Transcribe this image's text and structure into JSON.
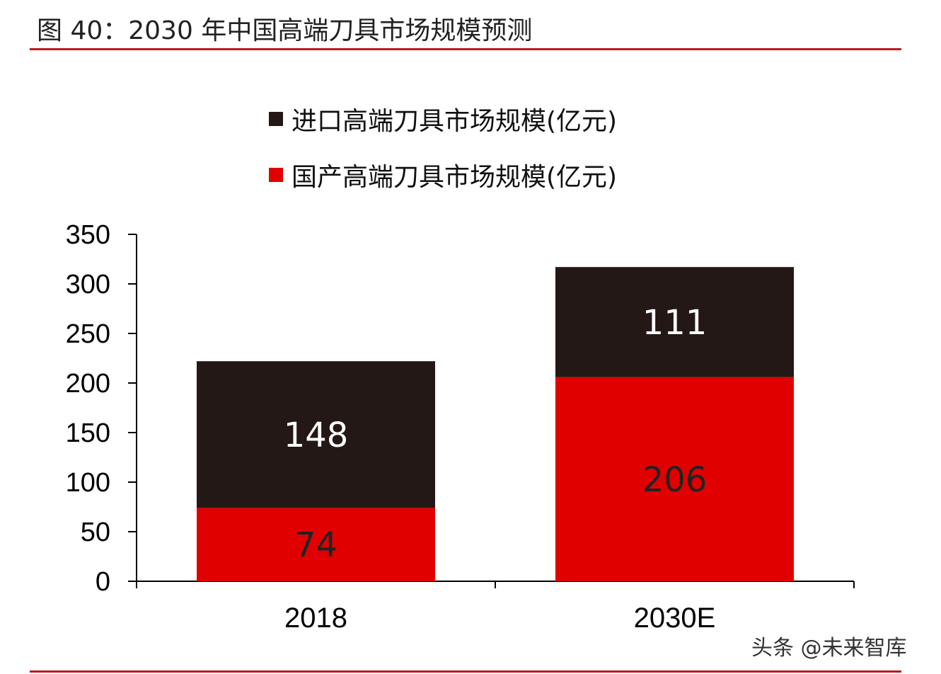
{
  "title": "图 40：2030 年中国高端刀具市场规模预测",
  "watermark": "头条 @未来智库",
  "colors": {
    "import": "#231815",
    "domestic": "#e00000",
    "rule": "#c0171d"
  },
  "chart_data": {
    "type": "bar",
    "stacked": true,
    "categories": [
      "2018",
      "2030E"
    ],
    "series": [
      {
        "name": "国产高端刀具市场规模(亿元)",
        "values": [
          74,
          206
        ],
        "color": "#e00000"
      },
      {
        "name": "进口高端刀具市场规模(亿元)",
        "values": [
          148,
          111
        ],
        "color": "#231815"
      }
    ],
    "legend": [
      "进口高端刀具市场规模(亿元)",
      "国产高端刀具市场规模(亿元)"
    ],
    "legend_placement": "top",
    "yticks": [
      "0",
      "50",
      "100",
      "150",
      "200",
      "250",
      "300",
      "350"
    ],
    "ylim": [
      0,
      350
    ],
    "grid": false
  }
}
